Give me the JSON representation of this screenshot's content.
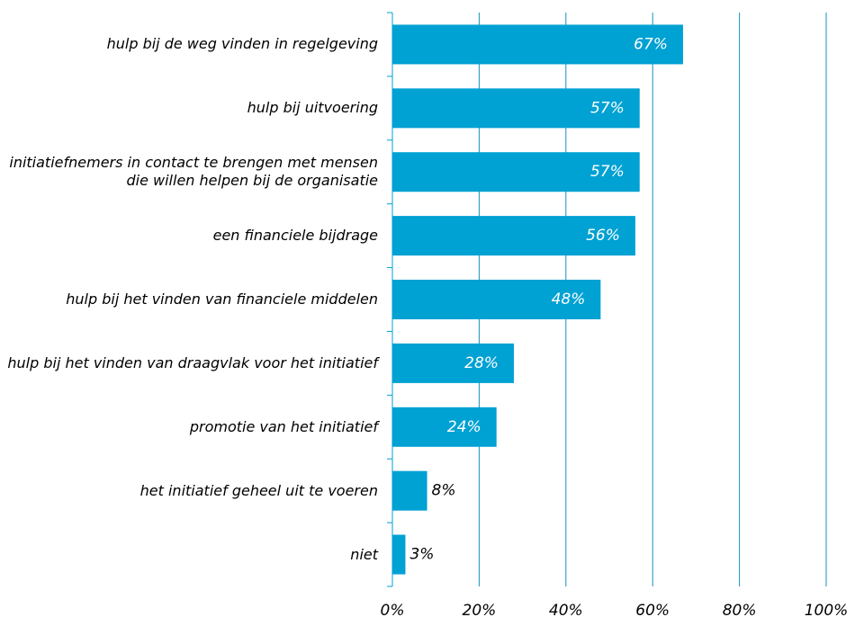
{
  "chart_data": {
    "type": "bar",
    "orientation": "horizontal",
    "categories": [
      "hulp bij de weg vinden in regelgeving",
      "hulp bij uitvoering",
      "initiatiefnemers in contact te brengen met mensen die willen helpen bij de organisatie",
      "een financiele bijdrage",
      "hulp bij het vinden van financiele middelen",
      "hulp bij het vinden van draagvlak voor het initiatief",
      "promotie van het initiatief",
      "het initiatief geheel uit te voeren",
      "niet"
    ],
    "values": [
      67,
      57,
      57,
      56,
      48,
      28,
      24,
      8,
      3
    ],
    "value_labels": [
      "67%",
      "57%",
      "57%",
      "56%",
      "48%",
      "28%",
      "24%",
      "8%",
      "3%"
    ],
    "color": "#00a1d3",
    "xlim": [
      0,
      100
    ],
    "xticks": [
      {
        "value": 0,
        "label": "0%"
      },
      {
        "value": 20,
        "label": "20%"
      },
      {
        "value": 40,
        "label": "40%"
      },
      {
        "value": 60,
        "label": "60%"
      },
      {
        "value": 80,
        "label": "80%"
      },
      {
        "value": 100,
        "label": "100%"
      }
    ],
    "grid": true
  }
}
